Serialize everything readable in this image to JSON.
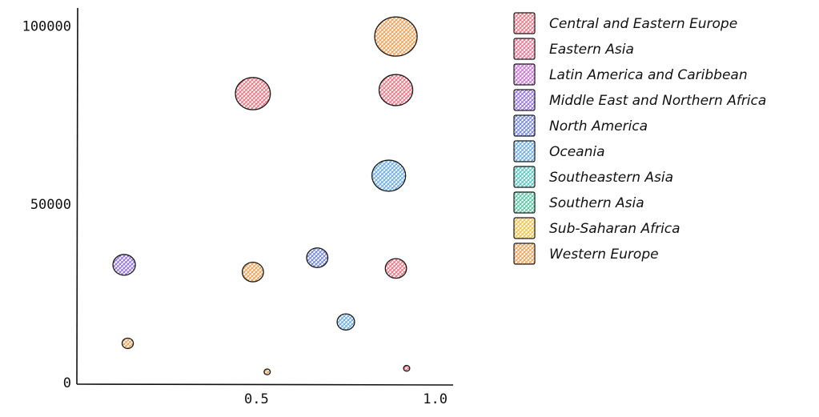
{
  "chart_data": {
    "type": "scatter",
    "title": "",
    "xlabel": "",
    "ylabel": "",
    "xlim": [
      0,
      1.05
    ],
    "ylim": [
      0,
      105000
    ],
    "x_ticks": [
      0.5,
      1.0
    ],
    "x_tick_labels": [
      "0.5",
      "1.0"
    ],
    "y_ticks": [
      0,
      50000,
      100000
    ],
    "y_tick_labels": [
      "0",
      "50000",
      "100000"
    ],
    "grid": false,
    "legend_position": "right",
    "categories": [
      "Central and Eastern Europe",
      "Eastern Asia",
      "Latin America and Caribbean",
      "Middle East and Northern Africa",
      "North America",
      "Oceania",
      "Southeastern Asia",
      "Southern Asia",
      "Sub-Saharan Africa",
      "Western Europe"
    ],
    "colors": [
      "#f06b7a",
      "#f06b8c",
      "#c86bd6",
      "#8f6be0",
      "#6b7fe0",
      "#63a8e6",
      "#4cc4c0",
      "#4cc49a",
      "#f2bd3d",
      "#f29a4a"
    ],
    "points": [
      {
        "category": "Middle East and Northern Africa",
        "x": 0.13,
        "y": 33000,
        "size": 18
      },
      {
        "category": "Western Europe",
        "x": 0.14,
        "y": 11000,
        "size": 9
      },
      {
        "category": "Central and Eastern Europe",
        "x": 0.49,
        "y": 81000,
        "size": 28
      },
      {
        "category": "Western Europe",
        "x": 0.49,
        "y": 31000,
        "size": 17
      },
      {
        "category": "Western Europe",
        "x": 0.53,
        "y": 3000,
        "size": 5
      },
      {
        "category": "North America",
        "x": 0.67,
        "y": 35000,
        "size": 17
      },
      {
        "category": "Oceania",
        "x": 0.75,
        "y": 17000,
        "size": 14
      },
      {
        "category": "Oceania",
        "x": 0.87,
        "y": 58000,
        "size": 27
      },
      {
        "category": "Central and Eastern Europe",
        "x": 0.89,
        "y": 82000,
        "size": 27
      },
      {
        "category": "Western Europe",
        "x": 0.89,
        "y": 97000,
        "size": 34
      },
      {
        "category": "Central and Eastern Europe",
        "x": 0.89,
        "y": 32000,
        "size": 17
      },
      {
        "category": "Central and Eastern Europe",
        "x": 0.92,
        "y": 4000,
        "size": 5
      }
    ]
  }
}
